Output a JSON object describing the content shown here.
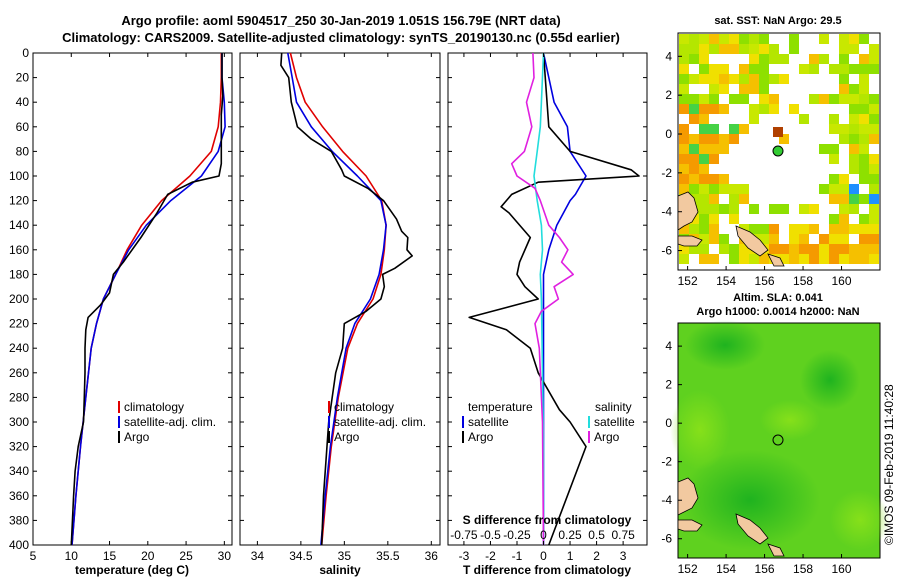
{
  "title_line1": "Argo profile: aoml 5904517_250 30-Jan-2019 1.051S 156.79E (NRT data)",
  "title_line2": "Climatology: CARS2009. Satellite-adjusted climatology: synTS_20190130.nc (0.55d earlier)",
  "credit": "©IMOS 09-Feb-2019 11:40:28",
  "colors": {
    "climatology": "#e00000",
    "satellite": "#0000e0",
    "argo": "#000000",
    "sat_salinity": "#22dddd",
    "argo_salinity": "#e020e0"
  },
  "depth_ticks": [
    "0",
    "20",
    "40",
    "60",
    "80",
    "100",
    "120",
    "140",
    "160",
    "180",
    "200",
    "220",
    "240",
    "260",
    "280",
    "300",
    "320",
    "340",
    "360",
    "380",
    "400"
  ],
  "chart_data": [
    {
      "type": "line",
      "id": "temperature",
      "xlabel": "temperature (deg C)",
      "ylabel": "",
      "xlim": [
        5,
        31
      ],
      "ylim": [
        400,
        0
      ],
      "xticks": [
        "5",
        "10",
        "15",
        "20",
        "25",
        "30"
      ],
      "legend": {
        "position": "bottom-right",
        "items": [
          "climatology",
          "satellite-adj. clim.",
          "Argo"
        ]
      },
      "series": [
        {
          "name": "climatology",
          "color": "#e00000",
          "depth": [
            0,
            20,
            40,
            60,
            80,
            100,
            120,
            140,
            160,
            180,
            200,
            220,
            240,
            280,
            320,
            360,
            400
          ],
          "values": [
            29.6,
            29.6,
            29.5,
            29.2,
            28.3,
            25.5,
            21.8,
            19.2,
            17.3,
            15.8,
            14.2,
            13.3,
            12.6,
            11.9,
            11.2,
            10.6,
            10.1
          ]
        },
        {
          "name": "satellite-adj. clim.",
          "color": "#0000e0",
          "depth": [
            0,
            20,
            40,
            60,
            80,
            100,
            120,
            140,
            160,
            180,
            200,
            220,
            240,
            280,
            320,
            360,
            400
          ],
          "values": [
            29.7,
            29.7,
            30.0,
            30.1,
            29.2,
            27.0,
            23.0,
            19.8,
            17.5,
            15.8,
            14.2,
            13.3,
            12.6,
            11.9,
            11.2,
            10.6,
            10.1
          ]
        },
        {
          "name": "Argo",
          "color": "#000000",
          "depth": [
            0,
            20,
            35,
            50,
            70,
            90,
            100,
            105,
            115,
            130,
            150,
            170,
            180,
            195,
            205,
            215,
            225,
            240,
            260,
            280,
            300,
            320,
            340,
            360,
            400
          ],
          "values": [
            29.7,
            29.7,
            29.8,
            29.6,
            29.6,
            29.6,
            29.3,
            25.8,
            22.6,
            21.2,
            19.1,
            16.8,
            15.5,
            15.0,
            13.8,
            12.2,
            11.9,
            11.8,
            11.8,
            11.7,
            11.6,
            10.9,
            10.5,
            10.3,
            10.0
          ]
        }
      ]
    },
    {
      "type": "line",
      "id": "salinity",
      "xlabel": "salinity",
      "ylabel": "",
      "xlim": [
        33.8,
        36.1
      ],
      "ylim": [
        400,
        0
      ],
      "xticks": [
        "34",
        "34.5",
        "35",
        "35.5",
        "36"
      ],
      "legend": {
        "position": "bottom-right",
        "items": [
          "climatology",
          "satellite-adj. clim.",
          "Argo"
        ]
      },
      "series": [
        {
          "name": "climatology",
          "color": "#e00000",
          "depth": [
            0,
            20,
            40,
            60,
            80,
            100,
            120,
            140,
            160,
            180,
            200,
            220,
            240,
            280,
            320,
            360,
            400
          ],
          "values": [
            34.38,
            34.45,
            34.55,
            34.75,
            34.98,
            35.25,
            35.43,
            35.48,
            35.46,
            35.42,
            35.33,
            35.15,
            35.04,
            34.93,
            34.85,
            34.79,
            34.74
          ]
        },
        {
          "name": "satellite-adj. clim.",
          "color": "#0000e0",
          "depth": [
            0,
            20,
            40,
            60,
            80,
            100,
            120,
            140,
            160,
            180,
            200,
            220,
            240,
            280,
            320,
            360,
            400
          ],
          "values": [
            34.35,
            34.4,
            34.45,
            34.62,
            34.86,
            35.15,
            35.42,
            35.48,
            35.45,
            35.4,
            35.3,
            35.12,
            35.02,
            34.92,
            34.84,
            34.78,
            34.73
          ]
        },
        {
          "name": "Argo",
          "color": "#000000",
          "depth": [
            0,
            10,
            20,
            40,
            60,
            70,
            80,
            95,
            100,
            110,
            120,
            135,
            145,
            150,
            160,
            165,
            175,
            180,
            190,
            200,
            210,
            220,
            240,
            260,
            300,
            330,
            360,
            400
          ],
          "values": [
            34.28,
            34.27,
            34.36,
            34.39,
            34.46,
            34.62,
            34.85,
            34.97,
            35.0,
            35.27,
            35.45,
            35.6,
            35.66,
            35.73,
            35.72,
            35.78,
            35.58,
            35.44,
            35.46,
            35.42,
            35.25,
            35.0,
            34.98,
            34.9,
            34.82,
            34.79,
            34.76,
            34.74
          ]
        }
      ]
    },
    {
      "type": "line",
      "id": "difference",
      "xlabel": "T difference from climatology",
      "xlabel_top": "S difference from climatology",
      "xlim": [
        -3.6,
        3.9
      ],
      "ylim": [
        400,
        0
      ],
      "xticks": [
        "-3",
        "-2",
        "-1",
        "0",
        "1",
        "2",
        "3"
      ],
      "xticks_top": [
        "-0.75",
        "-0.5",
        "-0.25",
        "0",
        "0.25",
        "0.5",
        "0.75"
      ],
      "legend_left": {
        "title": "temperature",
        "items": [
          "satellite",
          "Argo"
        ]
      },
      "legend_right": {
        "title": "salinity",
        "items": [
          "satellite",
          "Argo"
        ]
      },
      "series": [
        {
          "name": "temperature satellite",
          "color": "#0000e0",
          "depth": [
            0,
            40,
            60,
            80,
            100,
            115,
            120,
            140,
            160,
            180,
            200,
            220,
            260,
            300,
            400
          ],
          "values": [
            0.0,
            0.4,
            0.9,
            1.0,
            1.6,
            1.2,
            1.0,
            0.5,
            0.2,
            0.0,
            0.0,
            0.0,
            0.0,
            0.0,
            0.0
          ]
        },
        {
          "name": "temperature Argo",
          "color": "#000000",
          "depth": [
            0,
            60,
            80,
            95,
            100,
            105,
            115,
            125,
            130,
            150,
            170,
            180,
            190,
            200,
            215,
            225,
            240,
            260,
            290,
            300,
            320,
            400
          ],
          "values": [
            0.0,
            0.2,
            1.0,
            3.3,
            3.6,
            -0.2,
            -1.2,
            -1.6,
            -1.3,
            -0.5,
            -0.9,
            -1.0,
            -0.7,
            -0.2,
            -2.8,
            -1.4,
            -0.5,
            -0.2,
            0.6,
            1.0,
            1.6,
            0.2
          ]
        },
        {
          "name": "salinity satellite",
          "color": "#22dddd",
          "depth": [
            0,
            40,
            60,
            80,
            100,
            120,
            140,
            160,
            180,
            200,
            260,
            320,
            400
          ],
          "values": [
            0.0,
            -0.02,
            -0.03,
            -0.06,
            -0.09,
            -0.06,
            -0.02,
            -0.01,
            -0.03,
            -0.02,
            -0.01,
            0.0,
            0.0
          ]
        },
        {
          "name": "salinity Argo",
          "color": "#e020e0",
          "depth": [
            0,
            20,
            40,
            60,
            80,
            90,
            100,
            110,
            120,
            140,
            150,
            160,
            170,
            180,
            190,
            200,
            210,
            220,
            240,
            300,
            400
          ],
          "values": [
            -0.1,
            -0.09,
            -0.16,
            -0.11,
            -0.18,
            -0.3,
            -0.25,
            -0.08,
            -0.03,
            0.05,
            0.15,
            0.23,
            0.17,
            0.28,
            0.1,
            0.14,
            -0.02,
            -0.08,
            -0.04,
            -0.01,
            0.0
          ]
        }
      ]
    }
  ],
  "map_sst": {
    "title": "sat. SST: NaN Argo: 29.5",
    "xticks": [
      "152",
      "154",
      "156",
      "158",
      "160"
    ],
    "yticks": [
      "4",
      "2",
      "0",
      "-2",
      "-4",
      "-6"
    ]
  },
  "map_sla": {
    "title_line1": "Altim. SLA: 0.041",
    "title_line2": "Argo h1000: 0.0014 h2000: NaN",
    "xticks": [
      "152",
      "154",
      "156",
      "158",
      "160"
    ],
    "yticks": [
      "4",
      "2",
      "0",
      "-2",
      "-4",
      "-6"
    ]
  }
}
